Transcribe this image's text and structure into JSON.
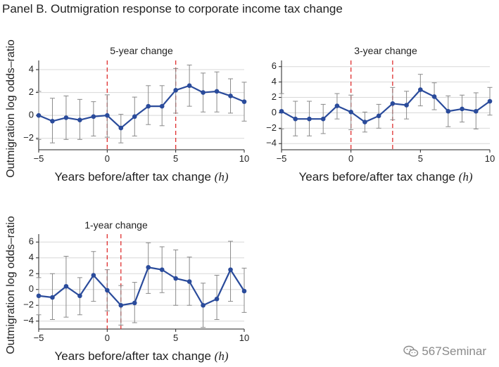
{
  "panel_title": "Panel B. Outmigration response to corporate income tax change",
  "watermark": "567Seminar",
  "colors": {
    "series": "#2a4b9b",
    "ci": "#8a8a8a",
    "event": "#e03030",
    "grid": "#d8d8d8"
  },
  "chart_data": [
    {
      "type": "line",
      "title": "5-year change",
      "xlabel": "Years before/after tax change",
      "xlabel_var": "(h)",
      "ylabel": "Outmigration log odds–ratio",
      "xlim": [
        -5,
        10
      ],
      "ylim": [
        -3,
        4.8
      ],
      "xticks": [
        -5,
        0,
        5,
        10
      ],
      "yticks": [
        -2,
        0,
        2,
        4
      ],
      "event_lines": [
        0,
        5
      ],
      "x": [
        -5,
        -4,
        -3,
        -2,
        -1,
        0,
        1,
        2,
        3,
        4,
        5,
        6,
        7,
        8,
        9,
        10
      ],
      "values": [
        0.0,
        -0.5,
        -0.2,
        -0.4,
        -0.1,
        0.0,
        -1.1,
        -0.1,
        0.8,
        0.8,
        2.2,
        2.6,
        2.0,
        2.1,
        1.7,
        1.2
      ],
      "ci_low": [
        -2.1,
        -2.4,
        -2.1,
        -2.1,
        -1.8,
        -1.9,
        -2.4,
        -1.8,
        -0.8,
        -0.9,
        0.2,
        0.8,
        0.3,
        0.3,
        0.2,
        -0.5
      ],
      "ci_high": [
        2.1,
        1.5,
        1.7,
        1.4,
        1.2,
        1.8,
        0.1,
        1.6,
        2.6,
        2.6,
        4.1,
        4.4,
        3.7,
        3.8,
        3.2,
        2.9
      ]
    },
    {
      "type": "line",
      "title": "3-year change",
      "xlabel": "Years before/after tax change",
      "xlabel_var": "(h)",
      "ylabel": "",
      "xlim": [
        -5,
        10
      ],
      "ylim": [
        -4.8,
        6.8
      ],
      "xticks": [
        -5,
        0,
        5,
        10
      ],
      "yticks": [
        -4,
        -2,
        0,
        2,
        4,
        6
      ],
      "event_lines": [
        0,
        3
      ],
      "x": [
        -5,
        -4,
        -3,
        -2,
        -1,
        0,
        1,
        2,
        3,
        4,
        5,
        6,
        7,
        8,
        9,
        10
      ],
      "values": [
        0.2,
        -0.8,
        -0.8,
        -0.8,
        0.9,
        0.1,
        -1.2,
        -0.4,
        1.2,
        1.0,
        3.0,
        2.1,
        0.2,
        0.5,
        0.2,
        1.5
      ],
      "ci_low": [
        -2.1,
        -3.0,
        -3.0,
        -2.7,
        -0.8,
        -2.2,
        -2.5,
        -2.0,
        -0.9,
        -0.8,
        0.9,
        0.4,
        -1.8,
        -1.2,
        -2.1,
        -0.3
      ],
      "ci_high": [
        2.5,
        1.5,
        1.5,
        1.1,
        2.5,
        2.3,
        0.1,
        1.1,
        3.3,
        2.8,
        5.0,
        3.9,
        2.2,
        2.3,
        2.6,
        3.3
      ]
    },
    {
      "type": "line",
      "title": "1-year change",
      "xlabel": "Years before/after tax change",
      "xlabel_var": "(h)",
      "ylabel": "Outmigration log odds–ratio",
      "xlim": [
        -5,
        10
      ],
      "ylim": [
        -5,
        7
      ],
      "xticks": [
        -5,
        0,
        5,
        10
      ],
      "yticks": [
        -4,
        -2,
        0,
        2,
        4,
        6
      ],
      "event_lines": [
        0,
        1
      ],
      "x": [
        -5,
        -4,
        -3,
        -2,
        -1,
        0,
        1,
        2,
        3,
        4,
        5,
        6,
        7,
        8,
        9,
        10
      ],
      "values": [
        -0.8,
        -1.0,
        0.4,
        -0.8,
        1.8,
        -0.1,
        -2.0,
        -1.7,
        2.8,
        2.5,
        1.4,
        1.0,
        -2.0,
        -1.2,
        2.5,
        -0.2
      ],
      "ci_low": [
        -3.2,
        -3.8,
        -3.5,
        -3.2,
        -1.5,
        -2.7,
        -4.5,
        -4.2,
        -0.5,
        -0.4,
        -2.0,
        -2.0,
        -4.8,
        -3.8,
        -1.5,
        -2.9
      ],
      "ci_high": [
        1.5,
        2.0,
        4.2,
        1.5,
        4.8,
        2.5,
        0.5,
        0.9,
        5.9,
        5.4,
        5.0,
        4.1,
        0.8,
        1.8,
        6.1,
        2.7
      ]
    }
  ]
}
